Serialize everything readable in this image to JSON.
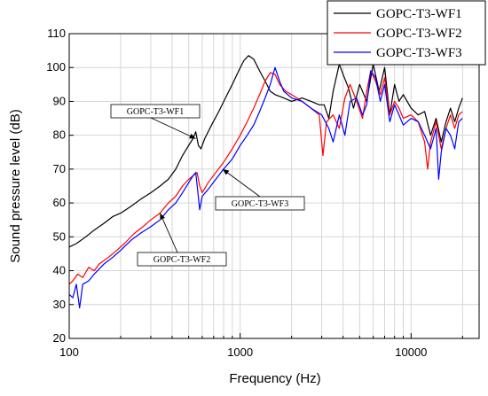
{
  "chart_data": {
    "type": "line",
    "title": "",
    "xlabel": "Frequency (Hz)",
    "ylabel": "Sound pressure level (dB)",
    "xscale": "log",
    "xlim": [
      100,
      25000
    ],
    "ylim": [
      20,
      110
    ],
    "x_ticks": [
      100,
      1000,
      10000
    ],
    "x_tick_labels": [
      "100",
      "1000",
      "10000"
    ],
    "y_ticks": [
      20,
      30,
      40,
      50,
      60,
      70,
      80,
      90,
      100,
      110
    ],
    "y_tick_labels": [
      "20",
      "30",
      "40",
      "50",
      "60",
      "70",
      "80",
      "90",
      "100",
      "110"
    ],
    "grid": true,
    "legend_position": "top-right",
    "series": [
      {
        "name": "GOPC-T3-WF1",
        "color": "#000000",
        "points": [
          [
            100,
            47
          ],
          [
            110,
            48
          ],
          [
            125,
            50
          ],
          [
            140,
            52
          ],
          [
            160,
            54
          ],
          [
            180,
            56
          ],
          [
            200,
            57
          ],
          [
            230,
            59
          ],
          [
            260,
            61
          ],
          [
            300,
            63
          ],
          [
            340,
            65
          ],
          [
            380,
            67
          ],
          [
            420,
            70
          ],
          [
            460,
            74
          ],
          [
            500,
            77
          ],
          [
            530,
            79
          ],
          [
            550,
            81
          ],
          [
            570,
            77
          ],
          [
            590,
            76
          ],
          [
            620,
            79
          ],
          [
            680,
            83
          ],
          [
            750,
            87
          ],
          [
            820,
            91
          ],
          [
            900,
            95
          ],
          [
            980,
            99
          ],
          [
            1050,
            102
          ],
          [
            1120,
            103.5
          ],
          [
            1200,
            102.5
          ],
          [
            1300,
            99
          ],
          [
            1400,
            96
          ],
          [
            1500,
            93
          ],
          [
            1600,
            92
          ],
          [
            1800,
            91
          ],
          [
            2000,
            90
          ],
          [
            2300,
            91
          ],
          [
            2600,
            90
          ],
          [
            2900,
            89
          ],
          [
            3100,
            89
          ],
          [
            3300,
            85
          ],
          [
            3500,
            93
          ],
          [
            3800,
            101
          ],
          [
            4000,
            98
          ],
          [
            4300,
            94
          ],
          [
            4600,
            88
          ],
          [
            5000,
            95
          ],
          [
            5500,
            90
          ],
          [
            6000,
            101
          ],
          [
            6500,
            93
          ],
          [
            7000,
            100
          ],
          [
            7500,
            86
          ],
          [
            8000,
            95
          ],
          [
            8500,
            90
          ],
          [
            9000,
            92
          ],
          [
            10000,
            88
          ],
          [
            11000,
            86
          ],
          [
            12000,
            87
          ],
          [
            13000,
            80
          ],
          [
            14000,
            85
          ],
          [
            15000,
            78
          ],
          [
            16000,
            84
          ],
          [
            17000,
            88
          ],
          [
            18000,
            84
          ],
          [
            19000,
            88
          ],
          [
            20000,
            91
          ]
        ]
      },
      {
        "name": "GOPC-T3-WF2",
        "color": "#ff0000",
        "points": [
          [
            100,
            36
          ],
          [
            105,
            37
          ],
          [
            112,
            39
          ],
          [
            120,
            38
          ],
          [
            130,
            41
          ],
          [
            140,
            40
          ],
          [
            150,
            42
          ],
          [
            170,
            44
          ],
          [
            190,
            46
          ],
          [
            210,
            48
          ],
          [
            240,
            51
          ],
          [
            270,
            53
          ],
          [
            300,
            55
          ],
          [
            340,
            57
          ],
          [
            380,
            60
          ],
          [
            420,
            62
          ],
          [
            460,
            65
          ],
          [
            500,
            67
          ],
          [
            530,
            68
          ],
          [
            560,
            69
          ],
          [
            580,
            65
          ],
          [
            600,
            63
          ],
          [
            650,
            66
          ],
          [
            720,
            69
          ],
          [
            800,
            72
          ],
          [
            900,
            76
          ],
          [
            1000,
            80
          ],
          [
            1100,
            84
          ],
          [
            1200,
            88
          ],
          [
            1300,
            92
          ],
          [
            1400,
            96
          ],
          [
            1500,
            98.5
          ],
          [
            1600,
            98
          ],
          [
            1700,
            95
          ],
          [
            1850,
            93
          ],
          [
            2000,
            92
          ],
          [
            2300,
            90
          ],
          [
            2600,
            88
          ],
          [
            2900,
            86
          ],
          [
            3050,
            74
          ],
          [
            3200,
            84
          ],
          [
            3500,
            86
          ],
          [
            3800,
            82
          ],
          [
            4100,
            91
          ],
          [
            4400,
            95
          ],
          [
            4800,
            90
          ],
          [
            5200,
            85
          ],
          [
            5500,
            93
          ],
          [
            5800,
            99
          ],
          [
            6200,
            96
          ],
          [
            6600,
            92
          ],
          [
            7000,
            97
          ],
          [
            7500,
            86
          ],
          [
            8000,
            90
          ],
          [
            8500,
            88
          ],
          [
            9000,
            85
          ],
          [
            10000,
            86
          ],
          [
            11000,
            84
          ],
          [
            12000,
            78
          ],
          [
            12500,
            70
          ],
          [
            13000,
            78
          ],
          [
            14000,
            84
          ],
          [
            15000,
            76
          ],
          [
            16000,
            82
          ],
          [
            17000,
            86
          ],
          [
            18000,
            82
          ],
          [
            19000,
            86
          ],
          [
            20000,
            87
          ]
        ]
      },
      {
        "name": "GOPC-T3-WF3",
        "color": "#0000ff",
        "points": [
          [
            100,
            33
          ],
          [
            105,
            32
          ],
          [
            110,
            36
          ],
          [
            115,
            29
          ],
          [
            120,
            36
          ],
          [
            130,
            37
          ],
          [
            140,
            39
          ],
          [
            160,
            42
          ],
          [
            180,
            44
          ],
          [
            200,
            46
          ],
          [
            230,
            49
          ],
          [
            260,
            51
          ],
          [
            300,
            53
          ],
          [
            340,
            55
          ],
          [
            380,
            58
          ],
          [
            420,
            60
          ],
          [
            460,
            63
          ],
          [
            500,
            66
          ],
          [
            530,
            68
          ],
          [
            550,
            69
          ],
          [
            580,
            58
          ],
          [
            600,
            62
          ],
          [
            650,
            64
          ],
          [
            720,
            67
          ],
          [
            800,
            70
          ],
          [
            900,
            73
          ],
          [
            1000,
            77
          ],
          [
            1100,
            80
          ],
          [
            1200,
            83
          ],
          [
            1300,
            87
          ],
          [
            1400,
            91
          ],
          [
            1500,
            95
          ],
          [
            1600,
            100
          ],
          [
            1700,
            96
          ],
          [
            1800,
            93
          ],
          [
            2000,
            91
          ],
          [
            2300,
            90
          ],
          [
            2600,
            88
          ],
          [
            3000,
            86
          ],
          [
            3300,
            82
          ],
          [
            3500,
            78
          ],
          [
            3800,
            86
          ],
          [
            4100,
            80
          ],
          [
            4400,
            90
          ],
          [
            4800,
            91
          ],
          [
            5200,
            86
          ],
          [
            5500,
            89
          ],
          [
            5800,
            99
          ],
          [
            6200,
            97
          ],
          [
            6600,
            90
          ],
          [
            7000,
            95
          ],
          [
            7500,
            84
          ],
          [
            8000,
            89
          ],
          [
            8500,
            86
          ],
          [
            9000,
            83
          ],
          [
            10000,
            85
          ],
          [
            11000,
            84
          ],
          [
            12000,
            80
          ],
          [
            13000,
            76
          ],
          [
            14000,
            82
          ],
          [
            14500,
            67
          ],
          [
            15000,
            75
          ],
          [
            16000,
            82
          ],
          [
            17000,
            80
          ],
          [
            18000,
            76
          ],
          [
            19000,
            84
          ],
          [
            20000,
            85
          ]
        ]
      }
    ],
    "annotations": [
      {
        "text": "GOPC-T3-WF1",
        "target": [
          550,
          79
        ]
      },
      {
        "text": "GOPC-T3-WF3",
        "target": [
          790,
          70
        ]
      },
      {
        "text": "GOPC-T3-WF2",
        "target": [
          340,
          57
        ]
      }
    ]
  }
}
